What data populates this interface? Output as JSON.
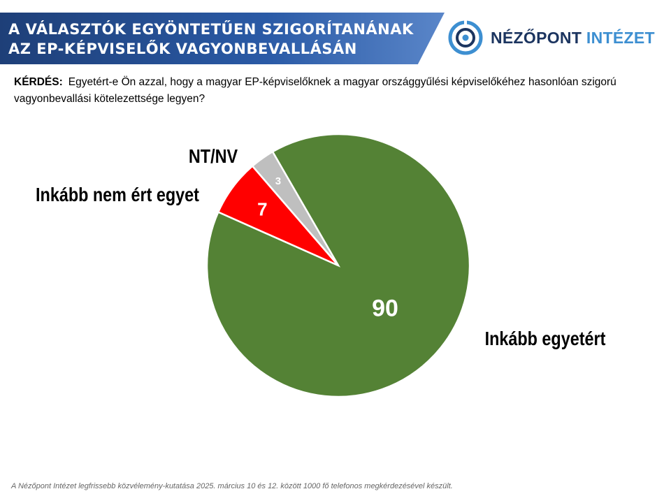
{
  "header": {
    "title_line1": "A VÁLASZTÓK EGYÖNTETŰEN SZIGORÍTANÁNAK",
    "title_line2": "AZ EP-KÉPVISELŐK VAGYONBEVALLÁSÁN"
  },
  "logo": {
    "text_part1": "NÉZŐPONT",
    "text_part2": "INTÉZET",
    "color_dark": "#1c3560",
    "color_light": "#3d8fd1"
  },
  "question": {
    "label": "KÉRDÉS:",
    "text": "Egyetért-e Ön azzal, hogy a magyar EP-képviselőknek a magyar országgyűlési képviselőkéhez hasonlóan szigorú vagyonbevallási kötelezettsége legyen?"
  },
  "chart_data": {
    "type": "pie",
    "slices": [
      {
        "label": "Inkább egyetért",
        "value": 90,
        "color": "#548235"
      },
      {
        "label": "Inkább nem ért egyet",
        "value": 7,
        "color": "#ff0000"
      },
      {
        "label": "NT/NV",
        "value": 3,
        "color": "#bfbfbf"
      }
    ]
  },
  "footnote": "A Nézőpont Intézet legfrissebb közvélemény-kutatása 2025. március 10 és 12. között 1000 fő telefonos megkérdezésével készült."
}
